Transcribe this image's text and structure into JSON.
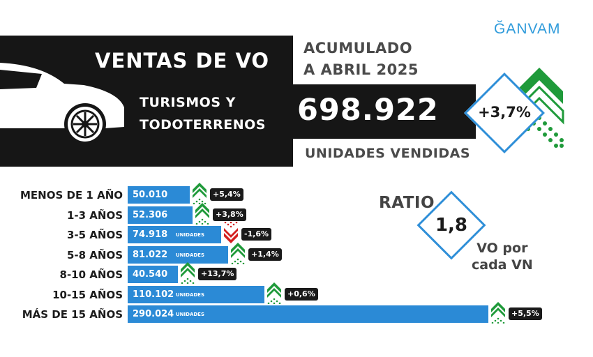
{
  "header": {
    "title": "VENTAS DE VO",
    "segment_line1": "TURISMOS Y",
    "segment_line2": "TODOTERRENOS",
    "period_line1": "ACUMULADO",
    "period_line2": "A ABRIL 2025",
    "total_units": "698.922",
    "units_label": "UNIDADES VENDIDAS",
    "total_change": "+3,7%"
  },
  "brand": "ĞANVAM",
  "ratio": {
    "label": "RATIO",
    "value": "1,8",
    "sub_line1": "VO por",
    "sub_line2": "cada VN"
  },
  "colors": {
    "bar": "#2b8ad6",
    "up": "#1f9a3a",
    "down": "#d42020",
    "diamond_border": "#2f8fd8",
    "brand": "#2f9bdb"
  },
  "chart_data": {
    "type": "bar",
    "orientation": "horizontal",
    "categories": [
      "MENOS DE 1 AÑO",
      "1-3 AÑOS",
      "3-5 AÑOS",
      "5-8 AÑOS",
      "8-10 AÑOS",
      "10-15 AÑOS",
      "MÁS DE 15 AÑOS"
    ],
    "values": [
      50010,
      52306,
      74918,
      81022,
      40540,
      110102,
      290024
    ],
    "value_labels": [
      "50.010",
      "52.306",
      "74.918",
      "81.022",
      "40.540",
      "110.102",
      "290.024"
    ],
    "unit_labels": [
      "",
      "",
      "UNIDADES",
      "UNIDADES",
      "",
      "UNIDADES",
      "UNIDADES"
    ],
    "changes": [
      "+5,4%",
      "+3,8%",
      "-1,6%",
      "+1,4%",
      "+13,7%",
      "+0,6%",
      "+5,5%"
    ],
    "directions": [
      "up",
      "up",
      "down",
      "up",
      "up",
      "up",
      "up"
    ],
    "xlim": [
      0,
      290024
    ]
  }
}
